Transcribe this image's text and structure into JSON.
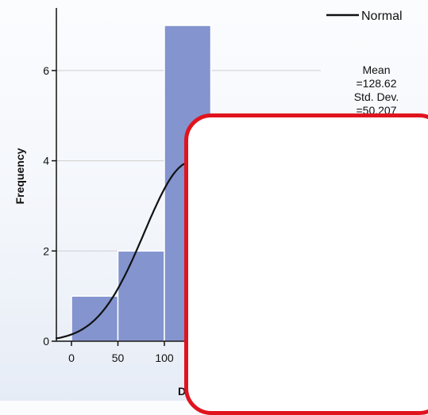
{
  "chart_data": {
    "type": "bar",
    "subtype": "histogram",
    "bins": [
      {
        "start": 0,
        "end": 50,
        "count": 1
      },
      {
        "start": 50,
        "end": 100,
        "count": 2
      },
      {
        "start": 100,
        "end": 150,
        "count": 7
      }
    ],
    "normal_curve": {
      "mean": 128.62,
      "sd": 50.2
    },
    "x_ticks": [
      "0",
      "50",
      "100"
    ],
    "y_ticks": [
      "0",
      "2",
      "4",
      "6"
    ],
    "xlabel": "Defe",
    "ylabel": "Frequency",
    "ylim": [
      0,
      7.4
    ],
    "xlim": [
      -17,
      300
    ],
    "grid": true,
    "legend": {
      "label": "Normal",
      "position": "top-right"
    },
    "stats": {
      "mean_label": "Mean",
      "mean_value": "=128.62",
      "sd_label": "Std. Dev.",
      "sd_value": "=50.207"
    },
    "colors": {
      "bar": "#8394cf",
      "curve": "#111111",
      "grid": "#cfcfcf"
    }
  },
  "overlay": {
    "border_color": "#e0141e",
    "fill": "#ffffff"
  }
}
